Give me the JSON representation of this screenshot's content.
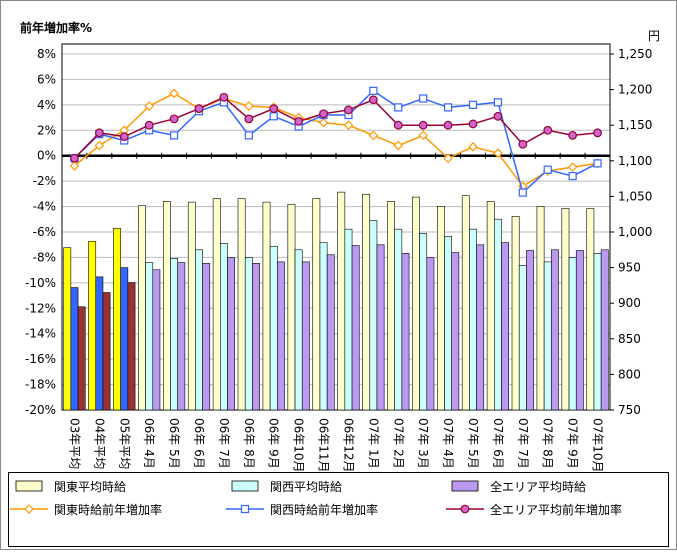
{
  "chart_data": {
    "type": "bar-line",
    "title": "前年増加率%",
    "y2_title": "円",
    "categories": [
      "03年平均",
      "04年平均",
      "05年平均",
      "06年 4月",
      "06年 5月",
      "06年 6月",
      "06年 7月",
      "06年 8月",
      "06年 9月",
      "06年10月",
      "06年11月",
      "06年12月",
      "07年 1月",
      "07年 2月",
      "07年 3月",
      "07年 4月",
      "07年 5月",
      "07年 6月",
      "07年 7月",
      "07年 8月",
      "07年 9月",
      "07年10月"
    ],
    "ylim": [
      -20,
      8
    ],
    "yticks": [
      {
        "value": -20,
        "label": "-20%"
      },
      {
        "value": -18,
        "label": "-18%"
      },
      {
        "value": -16,
        "label": "-16%"
      },
      {
        "value": -14,
        "label": "-14%"
      },
      {
        "value": -12,
        "label": "-12%"
      },
      {
        "value": -10,
        "label": "-10%"
      },
      {
        "value": -8,
        "label": "-8%"
      },
      {
        "value": -6,
        "label": "-6%"
      },
      {
        "value": -4,
        "label": "-4%"
      },
      {
        "value": -2,
        "label": "-2%"
      },
      {
        "value": 0,
        "label": "0%"
      },
      {
        "value": 2,
        "label": "2%"
      },
      {
        "value": 4,
        "label": "4%"
      },
      {
        "value": 6,
        "label": "6%"
      },
      {
        "value": 8,
        "label": "8%"
      }
    ],
    "y2lim": [
      750,
      1250
    ],
    "y2ticks": [
      750,
      800,
      850,
      900,
      950,
      {
        "value": 1000,
        "label": "1,000"
      },
      {
        "value": 1050,
        "label": "1,050"
      },
      {
        "value": 1100,
        "label": "1,100"
      },
      {
        "value": 1150,
        "label": "1,150"
      },
      {
        "value": 1200,
        "label": "1,200"
      },
      {
        "value": 1250,
        "label": "1,250"
      }
    ],
    "grid": true,
    "series": [
      {
        "name": "関東平均時給",
        "kind": "bar",
        "axis": "y2",
        "color": "#ffffcc",
        "colors": [
          "#ffff00",
          "#ffff00",
          "#ffff00",
          "#ffffcc",
          "#ffffcc",
          "#ffffcc",
          "#ffffcc",
          "#ffffcc",
          "#ffffcc",
          "#ffffcc",
          "#ffffcc",
          "#ffffcc",
          "#ffffcc",
          "#ffffcc",
          "#ffffcc",
          "#ffffcc",
          "#ffffcc",
          "#ffffcc",
          "#ffffcc",
          "#ffffcc",
          "#ffffcc",
          "#ffffcc"
        ],
        "values": [
          978,
          987,
          1005,
          1037,
          1043,
          1042,
          1047,
          1047,
          1042,
          1039,
          1047,
          1056,
          1053,
          1043,
          1049,
          1036,
          1051,
          1043,
          1022,
          1036,
          1033,
          1033
        ]
      },
      {
        "name": "関西平均時給",
        "kind": "bar",
        "axis": "y2",
        "color": "#ccffff",
        "colors": [
          "#3366ff",
          "#3366ff",
          "#3366ff",
          "#ccffff",
          "#ccffff",
          "#ccffff",
          "#ccffff",
          "#ccffff",
          "#ccffff",
          "#ccffff",
          "#ccffff",
          "#ccffff",
          "#ccffff",
          "#ccffff",
          "#ccffff",
          "#ccffff",
          "#ccffff",
          "#ccffff",
          "#ccffff",
          "#ccffff",
          "#ccffff",
          "#ccffff"
        ],
        "values": [
          922,
          937,
          950,
          957,
          963,
          975,
          984,
          964,
          980,
          975,
          985,
          1004,
          1016,
          1004,
          998,
          994,
          1004,
          1018,
          953,
          958,
          964,
          970
        ]
      },
      {
        "name": "全エリア平均時給",
        "kind": "bar",
        "axis": "y2",
        "color": "#bb99ee",
        "colors": [
          "#993333",
          "#993333",
          "#993333",
          "#bb99ee",
          "#bb99ee",
          "#bb99ee",
          "#bb99ee",
          "#bb99ee",
          "#bb99ee",
          "#bb99ee",
          "#bb99ee",
          "#bb99ee",
          "#bb99ee",
          "#bb99ee",
          "#bb99ee",
          "#bb99ee",
          "#bb99ee",
          "#bb99ee",
          "#bb99ee",
          "#bb99ee",
          "#bb99ee",
          "#bb99ee"
        ],
        "values": [
          895,
          915,
          929,
          947,
          957,
          956,
          964,
          956,
          958,
          958,
          968,
          981,
          982,
          970,
          964,
          971,
          982,
          985,
          974,
          975,
          974,
          975
        ]
      },
      {
        "name": "関東時給前年増加率",
        "kind": "line",
        "color": "#ff9900",
        "marker": "diamond",
        "marker_fill": "#ffffff",
        "values": [
          -0.8,
          0.8,
          2.0,
          3.9,
          4.9,
          3.7,
          4.5,
          3.9,
          3.8,
          3.0,
          2.6,
          2.4,
          1.6,
          0.8,
          1.6,
          -0.2,
          0.7,
          0.2,
          -2.4,
          -1.2,
          -0.9,
          -0.6
        ]
      },
      {
        "name": "関西時給前年増加率",
        "kind": "line",
        "color": "#3366ff",
        "marker": "square",
        "marker_fill": "#ffffff",
        "values": [
          -0.2,
          1.7,
          1.2,
          2.0,
          1.6,
          3.5,
          4.2,
          1.6,
          3.1,
          2.3,
          3.2,
          3.2,
          5.1,
          3.8,
          4.5,
          3.8,
          4.0,
          4.2,
          -2.9,
          -1.1,
          -1.6,
          -0.6
        ]
      },
      {
        "name": "全エリア平均前年増加率",
        "kind": "line",
        "color": "#990033",
        "marker": "circle",
        "marker_fill": "#cc66cc",
        "values": [
          -0.2,
          1.8,
          1.5,
          2.4,
          2.9,
          3.7,
          4.6,
          2.9,
          3.7,
          2.7,
          3.3,
          3.6,
          4.4,
          2.4,
          2.4,
          2.4,
          2.5,
          3.1,
          0.9,
          2.0,
          1.6,
          1.8
        ]
      }
    ]
  }
}
